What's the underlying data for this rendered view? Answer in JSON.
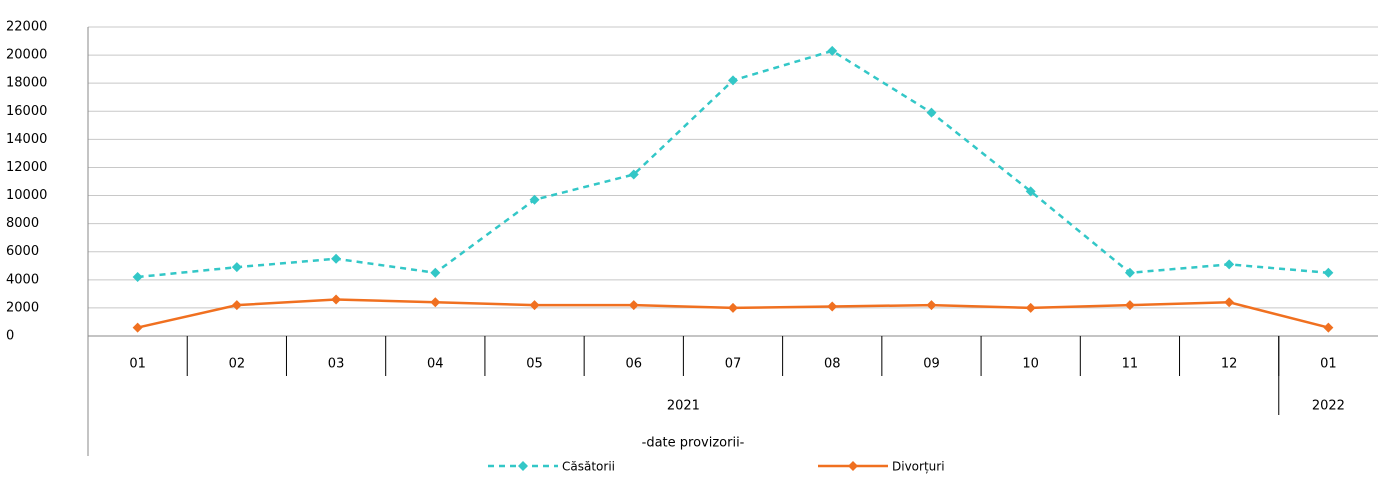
{
  "chart_data": {
    "type": "line",
    "categories": [
      "01",
      "02",
      "03",
      "04",
      "05",
      "06",
      "07",
      "08",
      "09",
      "10",
      "11",
      "12",
      "01"
    ],
    "category_groups": [
      {
        "label": "2021",
        "span": 12
      },
      {
        "label": "2022",
        "span": 1
      }
    ],
    "note": "-date provizorii-",
    "series": [
      {
        "name": "Căsătorii",
        "color": "#33c7c7",
        "dashed": true,
        "values": [
          4200,
          4900,
          5500,
          4500,
          9700,
          11500,
          18200,
          20300,
          15900,
          10300,
          4500,
          5100,
          4500
        ]
      },
      {
        "name": "Divorțuri",
        "color": "#f07020",
        "dashed": false,
        "values": [
          600,
          2200,
          2600,
          2400,
          2200,
          2200,
          2000,
          2100,
          2200,
          2000,
          2200,
          2400,
          600
        ]
      }
    ],
    "ylim": [
      0,
      22000
    ],
    "yticks": [
      0,
      2000,
      4000,
      6000,
      8000,
      10000,
      12000,
      14000,
      16000,
      18000,
      20000,
      22000
    ],
    "grid": true
  }
}
